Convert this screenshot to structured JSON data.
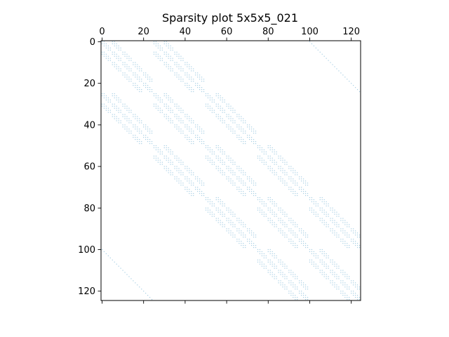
{
  "chart_data": {
    "type": "scatter",
    "title": "Sparsity plot 5x5x5_021",
    "xlabel": "",
    "ylabel": "",
    "n": 125,
    "xlim": [
      -0.5,
      124.5
    ],
    "ylim": [
      124.5,
      -0.5
    ],
    "x_ticks": [
      0,
      20,
      40,
      60,
      80,
      100,
      120
    ],
    "y_ticks": [
      0,
      20,
      40,
      60,
      80,
      100,
      120
    ],
    "x_tick_labels": [
      "0",
      "20",
      "40",
      "60",
      "80",
      "100",
      "120"
    ],
    "y_tick_labels": [
      "0",
      "20",
      "40",
      "60",
      "80",
      "100",
      "120"
    ],
    "x_axis_position": "top",
    "grid": false,
    "marker_color": "#a6cee3",
    "structure": "block-banded 5x5x5 grid stencil: for each row i=(a,b,c) with a,b,c in 0..4, nonzero columns j=(a',b',c') where |a-a'|<=1, |b-b'|<=1 and |c-c'|<=1 (row index = 25a+5b+c); plus periodic couplings at offsets ±100 (a-direction wrap)"
  }
}
